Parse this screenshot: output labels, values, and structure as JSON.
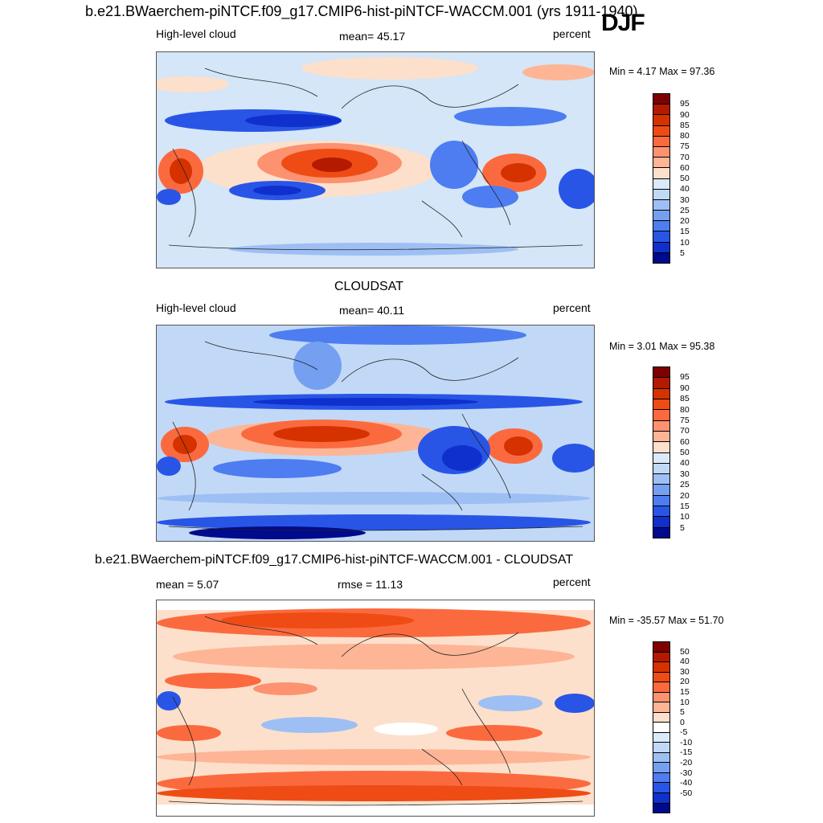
{
  "figure": {
    "title": "b.e21.BWaerchem-piNTCF.f09_g17.CMIP6-hist-piNTCF-WACCM.001 (yrs 1911-1940)",
    "season": "DJF"
  },
  "panels": [
    {
      "id": "model",
      "heading": "",
      "left_label": "High-level cloud",
      "center_label": "mean=  45.17",
      "right_label": "percent",
      "minmax": "Min =   4.17 Max =  97.36",
      "levels": [
        "95",
        "90",
        "85",
        "80",
        "75",
        "70",
        "60",
        "50",
        "40",
        "30",
        "25",
        "20",
        "15",
        "10",
        "5"
      ]
    },
    {
      "id": "obs",
      "heading": "CLOUDSAT",
      "left_label": "High-level cloud",
      "center_label": "mean=  40.11",
      "right_label": "percent",
      "minmax": "Min =   3.01 Max =  95.38",
      "levels": [
        "95",
        "90",
        "85",
        "80",
        "75",
        "70",
        "60",
        "50",
        "40",
        "30",
        "25",
        "20",
        "15",
        "10",
        "5"
      ]
    },
    {
      "id": "diff",
      "heading": "b.e21.BWaerchem-piNTCF.f09_g17.CMIP6-hist-piNTCF-WACCM.001 - CLOUDSAT",
      "left_label": "mean =   5.07",
      "center_label": "rmse =  11.13",
      "right_label": "percent",
      "minmax": "Min = -35.57 Max =  51.70",
      "levels": [
        "50",
        "40",
        "30",
        "20",
        "15",
        "10",
        "5",
        "0",
        "-5",
        "-10",
        "-15",
        "-20",
        "-30",
        "-40",
        "-50"
      ]
    }
  ],
  "colors": {
    "seq_colorbar": [
      "#7f0000",
      "#b41a00",
      "#d53200",
      "#ee4c14",
      "#fb6a3e",
      "#fc9270",
      "#fdb596",
      "#fde0cb",
      "#dbeafa",
      "#c1d9f6",
      "#9ebff4",
      "#759ff1",
      "#4d7df0",
      "#2955e6",
      "#0f30cc",
      "#000a8c"
    ],
    "diff_colorbar": [
      "#7f0000",
      "#b41a00",
      "#d53200",
      "#ee4c14",
      "#fb6a3e",
      "#fc9270",
      "#fdb596",
      "#fde0cb",
      "#ffffff",
      "#dbeafa",
      "#c1d9f6",
      "#9ebff4",
      "#759ff1",
      "#4d7df0",
      "#2955e6",
      "#0f30cc",
      "#000a8c"
    ]
  }
}
